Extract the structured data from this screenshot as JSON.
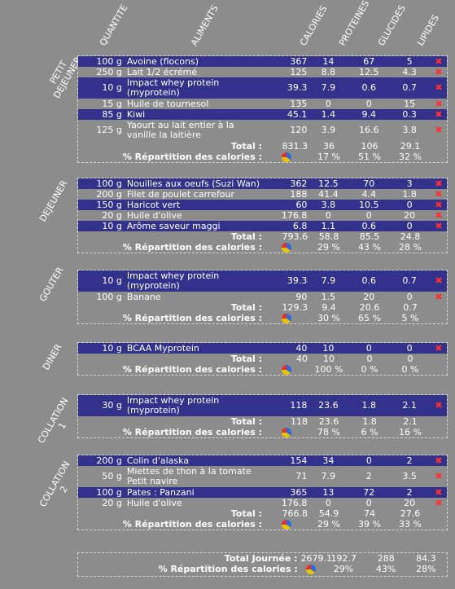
{
  "headers": {
    "quantite": "QUANTITE",
    "aliments": "ALIMENTS",
    "calories": "CALORIES",
    "proteines": "PROTEINES",
    "glucides": "GLUCIDES",
    "lipides": "LIPIDES"
  },
  "total_label": "Total :",
  "repartition_label": "% Répartition des calories :",
  "meals": [
    {
      "label_lines": [
        "PETIT",
        "DEJEUNER"
      ],
      "items": [
        {
          "q": "100 g",
          "name": "Avoine (flocons)",
          "cal": "367",
          "p": "14",
          "g": "67",
          "l": "5",
          "hl": true,
          "tall": false,
          "del": "✖"
        },
        {
          "q": "250 g",
          "name": "Lait 1/2 écrémé",
          "cal": "125",
          "p": "8.8",
          "g": "12.5",
          "l": "4.3",
          "hl": false,
          "tall": false,
          "del": "✖"
        },
        {
          "q": "10 g",
          "name": "Impact whey protein (myprotein)",
          "cal": "39.3",
          "p": "7.9",
          "g": "0.6",
          "l": "0.7",
          "hl": true,
          "tall": true,
          "del": "✖"
        },
        {
          "q": "15 g",
          "name": "Huile de tournesol",
          "cal": "135",
          "p": "0",
          "g": "0",
          "l": "15",
          "hl": false,
          "tall": false,
          "del": "✖"
        },
        {
          "q": "85 g",
          "name": "Kiwi",
          "cal": "45.1",
          "p": "1.4",
          "g": "9.4",
          "l": "0.3",
          "hl": true,
          "tall": false,
          "del": "✖"
        },
        {
          "q": "125 g",
          "name": "Yaourt au lait entier à la vanille la laitière",
          "cal": "120",
          "p": "3.9",
          "g": "16.6",
          "l": "3.8",
          "hl": false,
          "tall": true,
          "del": "✖"
        }
      ],
      "total": {
        "cal": "831.3",
        "p": "36",
        "g": "106",
        "l": "29.1"
      },
      "pct": {
        "p": "17 %",
        "g": "51 %",
        "l": "32 %"
      }
    },
    {
      "label_lines": [
        "DEJEUNER"
      ],
      "items": [
        {
          "q": "100 g",
          "name": "Nouilles aux oeufs (Suzi Wan)",
          "cal": "362",
          "p": "12.5",
          "g": "70",
          "l": "3",
          "hl": true,
          "tall": false,
          "del": "✖"
        },
        {
          "q": "200 g",
          "name": "Filet de poulet carrefour",
          "cal": "188",
          "p": "41.4",
          "g": "4.4",
          "l": "1.8",
          "hl": false,
          "tall": false,
          "del": "✖"
        },
        {
          "q": "150 g",
          "name": "Haricot vert",
          "cal": "60",
          "p": "3.8",
          "g": "10.5",
          "l": "0",
          "hl": true,
          "tall": false,
          "del": "✖"
        },
        {
          "q": "20 g",
          "name": "Huile d'olive",
          "cal": "176.8",
          "p": "0",
          "g": "0",
          "l": "20",
          "hl": false,
          "tall": false,
          "del": "✖"
        },
        {
          "q": "10 g",
          "name": "Arôme saveur maggi",
          "cal": "6.8",
          "p": "1.1",
          "g": "0.6",
          "l": "0",
          "hl": true,
          "tall": false,
          "del": "✖"
        }
      ],
      "total": {
        "cal": "793.6",
        "p": "58.8",
        "g": "85.5",
        "l": "24.8"
      },
      "pct": {
        "p": "29 %",
        "g": "43 %",
        "l": "28 %"
      }
    },
    {
      "label_lines": [
        "GOUTER"
      ],
      "items": [
        {
          "q": "10 g",
          "name": "Impact whey protein (myprotein)",
          "cal": "39.3",
          "p": "7.9",
          "g": "0.6",
          "l": "0.7",
          "hl": true,
          "tall": true,
          "del": "✖"
        },
        {
          "q": "100 g",
          "name": "Banane",
          "cal": "90",
          "p": "1.5",
          "g": "20",
          "l": "0",
          "hl": false,
          "tall": false,
          "del": "✖"
        }
      ],
      "total": {
        "cal": "129.3",
        "p": "9.4",
        "g": "20.6",
        "l": "0.7"
      },
      "pct": {
        "p": "30 %",
        "g": "65 %",
        "l": "5 %"
      }
    },
    {
      "label_lines": [
        "DINER"
      ],
      "items": [
        {
          "q": "10 g",
          "name": "BCAA Myprotein",
          "cal": "40",
          "p": "10",
          "g": "0",
          "l": "0",
          "hl": true,
          "tall": false,
          "del": "✖"
        }
      ],
      "total": {
        "cal": "40",
        "p": "10",
        "g": "0",
        "l": "0"
      },
      "pct": {
        "p": "100 %",
        "g": "0 %",
        "l": "0 %"
      }
    },
    {
      "label_lines": [
        "COLLATION",
        "1"
      ],
      "items": [
        {
          "q": "30 g",
          "name": "Impact whey protein (myprotein)",
          "cal": "118",
          "p": "23.6",
          "g": "1.8",
          "l": "2.1",
          "hl": true,
          "tall": true,
          "del": "✖"
        }
      ],
      "total": {
        "cal": "118",
        "p": "23.6",
        "g": "1.8",
        "l": "2.1"
      },
      "pct": {
        "p": "78 %",
        "g": "6 %",
        "l": "16 %"
      }
    },
    {
      "label_lines": [
        "COLLATION",
        "2"
      ],
      "items": [
        {
          "q": "200 g",
          "name": "Colin d'alaska",
          "cal": "154",
          "p": "34",
          "g": "0",
          "l": "2",
          "hl": true,
          "tall": false,
          "del": "✖"
        },
        {
          "q": "50 g",
          "name": "Miettes de thon à la tomate Petit navire",
          "cal": "71",
          "p": "7.9",
          "g": "2",
          "l": "3.5",
          "hl": false,
          "tall": true,
          "del": "✖"
        },
        {
          "q": "100 g",
          "name": "Pates : Panzani",
          "cal": "365",
          "p": "13",
          "g": "72",
          "l": "2",
          "hl": true,
          "tall": false,
          "del": "✖"
        },
        {
          "q": "20 g",
          "name": "Huile d'olive",
          "cal": "176.8",
          "p": "0",
          "g": "0",
          "l": "20",
          "hl": false,
          "tall": false,
          "del": "✖"
        }
      ],
      "total": {
        "cal": "766.8",
        "p": "54.9",
        "g": "74",
        "l": "27.6"
      },
      "pct": {
        "p": "29 %",
        "g": "39 %",
        "l": "33 %"
      }
    }
  ],
  "grand": {
    "label": "Total Journée :",
    "cal": "2679.1",
    "p": "192.7",
    "g": "288",
    "l": "84.3",
    "pct_label": "% Répartition des calories :",
    "pp": "29%",
    "pg": "43%",
    "pl": "28%"
  }
}
